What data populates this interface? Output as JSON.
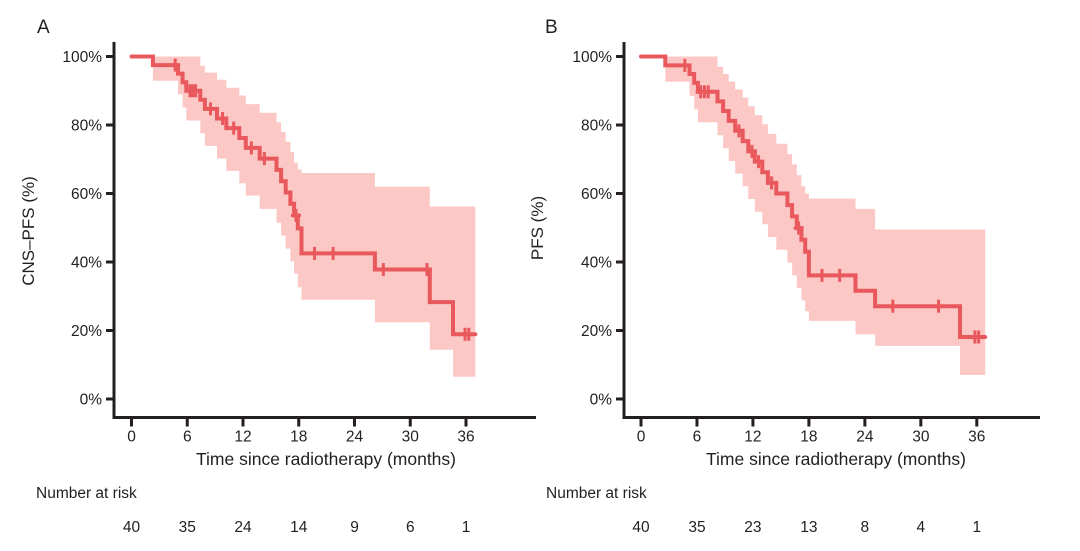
{
  "figure": {
    "background": "#ffffff",
    "colors": {
      "line": "#e8585c",
      "band": "#fbc8c6",
      "axis": "#231f20",
      "text": "#231f20"
    }
  },
  "chart_data": [
    {
      "type": "line",
      "interpolation": "step-after",
      "panel_label": "A",
      "ylabel": "CNS–PFS (%)",
      "xlabel": "Time since radiotherapy (months)",
      "x_ticks": [
        0,
        6,
        12,
        18,
        24,
        30,
        36
      ],
      "y_ticks": [
        {
          "value": 0,
          "label": "0%"
        },
        {
          "value": 20,
          "label": "20%"
        },
        {
          "value": 40,
          "label": "40%"
        },
        {
          "value": 60,
          "label": "60%"
        },
        {
          "value": 80,
          "label": "80%"
        },
        {
          "value": 100,
          "label": "100%"
        }
      ],
      "xlim": [
        0,
        43
      ],
      "ylim": [
        0,
        100
      ],
      "grid": false,
      "legend": "none",
      "risk_label": "Number at risk",
      "risk_times": [
        0,
        6,
        12,
        18,
        24,
        30,
        36
      ],
      "risk_values": [
        40,
        35,
        24,
        14,
        9,
        6,
        1
      ],
      "step_format": [
        "time_months",
        "survival_pct",
        "ci_upper_pct",
        "ci_lower_pct"
      ],
      "series": [
        {
          "name": "CNS-PFS",
          "end_time": 37.0,
          "steps": [
            [
              0,
              100,
              100,
              100
            ],
            [
              2.3,
              97.5,
              100,
              92.9
            ],
            [
              5.0,
              95.0,
              100,
              89.0
            ],
            [
              5.5,
              92.5,
              100,
              85.1
            ],
            [
              5.9,
              90.0,
              100,
              81.3
            ],
            [
              7.4,
              87.4,
              97.3,
              77.6
            ],
            [
              7.9,
              84.7,
              95.3,
              73.9
            ],
            [
              9.2,
              81.9,
              93.2,
              70.2
            ],
            [
              10.2,
              79.1,
              90.9,
              66.6
            ],
            [
              11.6,
              76.2,
              88.6,
              63.0
            ],
            [
              12.3,
              73.3,
              86.1,
              59.4
            ],
            [
              13.8,
              70.2,
              83.6,
              55.5
            ],
            [
              15.6,
              66.9,
              80.8,
              51.5
            ],
            [
              16.1,
              63.6,
              78.0,
              47.7
            ],
            [
              16.6,
              60.3,
              75.1,
              43.9
            ],
            [
              17.1,
              57.0,
              72.1,
              40.2
            ],
            [
              17.5,
              53.6,
              69.0,
              36.6
            ],
            [
              17.9,
              49.8,
              67.0,
              32.6
            ],
            [
              18.3,
              42.5,
              66.0,
              29.0
            ],
            [
              26.2,
              37.8,
              62.0,
              22.4
            ],
            [
              32.1,
              28.3,
              56.2,
              14.4
            ],
            [
              34.6,
              18.9,
              56.2,
              6.5
            ]
          ],
          "censors": [
            [
              4.7,
              97.5
            ],
            [
              6.3,
              90
            ],
            [
              6.6,
              90
            ],
            [
              6.9,
              90
            ],
            [
              8.5,
              84.7
            ],
            [
              9.8,
              81.9
            ],
            [
              11.0,
              79.1
            ],
            [
              12.9,
              73.3
            ],
            [
              14.3,
              70.2
            ],
            [
              17.7,
              53.6
            ],
            [
              19.7,
              42.5
            ],
            [
              21.7,
              42.5
            ],
            [
              27.1,
              37.8
            ],
            [
              31.8,
              37.8
            ],
            [
              35.9,
              18.9
            ],
            [
              36.3,
              18.9
            ]
          ]
        }
      ]
    },
    {
      "type": "line",
      "interpolation": "step-after",
      "panel_label": "B",
      "ylabel": "PFS (%)",
      "xlabel": "Time since radiotherapy (months)",
      "x_ticks": [
        0,
        6,
        12,
        18,
        24,
        30,
        36
      ],
      "y_ticks": [
        {
          "value": 0,
          "label": "0%"
        },
        {
          "value": 20,
          "label": "20%"
        },
        {
          "value": 40,
          "label": "40%"
        },
        {
          "value": 60,
          "label": "60%"
        },
        {
          "value": 80,
          "label": "80%"
        },
        {
          "value": 100,
          "label": "100%"
        }
      ],
      "xlim": [
        0,
        43
      ],
      "ylim": [
        0,
        100
      ],
      "grid": false,
      "legend": "none",
      "risk_label": "Number at risk",
      "risk_times": [
        0,
        6,
        12,
        18,
        24,
        30,
        36
      ],
      "risk_values": [
        40,
        35,
        23,
        13,
        8,
        4,
        1
      ],
      "step_format": [
        "time_months",
        "survival_pct",
        "ci_upper_pct",
        "ci_lower_pct"
      ],
      "series": [
        {
          "name": "PFS",
          "end_time": 36.9,
          "steps": [
            [
              0,
              100,
              100,
              100
            ],
            [
              2.6,
              97.4,
              100,
              92.6
            ],
            [
              5.2,
              94.9,
              100,
              88.5
            ],
            [
              5.7,
              92.3,
              100,
              84.6
            ],
            [
              6.1,
              89.7,
              100,
              80.8
            ],
            [
              8.2,
              86.9,
              97.0,
              77.0
            ],
            [
              8.8,
              84.1,
              94.9,
              73.2
            ],
            [
              9.4,
              81.2,
              92.7,
              69.5
            ],
            [
              10.1,
              78.3,
              90.4,
              65.8
            ],
            [
              10.9,
              75.3,
              88.0,
              62.1
            ],
            [
              11.5,
              72.3,
              85.5,
              58.4
            ],
            [
              12.2,
              69.3,
              82.9,
              54.7
            ],
            [
              13.0,
              66.2,
              80.2,
              51.0
            ],
            [
              13.6,
              63.1,
              77.4,
              47.3
            ],
            [
              14.5,
              60.0,
              74.5,
              43.6
            ],
            [
              15.7,
              56.6,
              71.5,
              39.8
            ],
            [
              16.2,
              53.3,
              68.5,
              36.1
            ],
            [
              16.7,
              49.9,
              65.3,
              32.4
            ],
            [
              17.2,
              46.5,
              62.1,
              28.8
            ],
            [
              17.6,
              43.0,
              60.0,
              25.6
            ],
            [
              18.0,
              36.1,
              58.5,
              22.8
            ],
            [
              23.0,
              31.6,
              55.5,
              18.9
            ],
            [
              25.1,
              27.1,
              49.5,
              15.5
            ],
            [
              34.2,
              18.1,
              49.5,
              7.0
            ]
          ],
          "censors": [
            [
              4.7,
              97.4
            ],
            [
              6.4,
              89.7
            ],
            [
              6.8,
              89.7
            ],
            [
              7.2,
              89.7
            ],
            [
              10.5,
              78.3
            ],
            [
              11.9,
              72.3
            ],
            [
              12.6,
              69.3
            ],
            [
              14.0,
              63.1
            ],
            [
              16.9,
              49.9
            ],
            [
              19.4,
              36.1
            ],
            [
              21.3,
              36.1
            ],
            [
              27.0,
              27.1
            ],
            [
              31.9,
              27.1
            ],
            [
              35.8,
              18.1
            ],
            [
              36.2,
              18.1
            ]
          ]
        }
      ]
    }
  ]
}
